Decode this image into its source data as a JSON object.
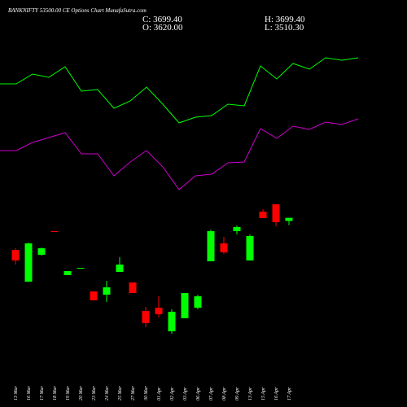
{
  "header": {
    "title": "BANKNIFTY 53500.00 CE Options Chart MunafaSutra.com",
    "close": "C: 3699.40",
    "open": "O: 3620.00",
    "high": "H: 3699.40",
    "low": "L: 3510.30"
  },
  "chart_data": [
    {
      "type": "candlestick",
      "categories": [
        "13 Mar",
        "16 Mar",
        "17 Mar",
        "18 Mar",
        "19 Mar",
        "20 Mar",
        "23 Mar",
        "24 Mar",
        "25 Mar",
        "27 Mar",
        "30 Mar",
        "01 Apr",
        "02 Apr",
        "03 Apr",
        "06 Apr",
        "07 Apr",
        "08 Apr",
        "09 Apr",
        "13 Apr",
        "15 Apr",
        "16 Apr",
        "17 Apr"
      ],
      "open": [
        2873,
        2054,
        2747,
        3356,
        2222,
        2390,
        1802,
        1718,
        2306,
        2033,
        1298,
        1382,
        773,
        1109,
        1382,
        2579,
        3041,
        3356,
        2600,
        3860,
        4049,
        3620
      ],
      "close": [
        2600,
        3041,
        2915,
        3335,
        2327,
        2411,
        1571,
        1907,
        2495,
        1760,
        983,
        1214,
        1277,
        1760,
        1676,
        3356,
        2810,
        3461,
        3230,
        3692,
        3587,
        3699.4
      ],
      "high": [
        2915,
        3062,
        2936,
        3356,
        2327,
        2411,
        1802,
        2075,
        2684,
        2033,
        1403,
        1676,
        1340,
        1760,
        1718,
        3398,
        3209,
        3503,
        3272,
        3923,
        4049,
        3699.4
      ],
      "low": [
        2495,
        2054,
        2726,
        3335,
        2222,
        2390,
        1571,
        1529,
        2306,
        1760,
        878,
        1130,
        710,
        1109,
        1340,
        2579,
        2768,
        3272,
        2600,
        3692,
        3482,
        3510.3
      ],
      "up_color": "#00ff00",
      "down_color": "#ff0000",
      "ylim": [
        500,
        8480
      ]
    },
    {
      "type": "line",
      "categories": [
        null,
        null,
        null,
        null,
        null,
        null,
        null,
        null,
        null,
        null,
        null,
        null,
        null,
        null,
        null,
        null,
        null,
        null,
        null,
        null,
        null,
        null,
        null
      ],
      "series": [
        {
          "color": "#00ff00",
          "values": [
            7157,
            7157,
            7409,
            7325,
            7598,
            6968,
            7010,
            6527,
            6716,
            7073,
            6632,
            6149,
            6296,
            6338,
            6632,
            6590,
            7619,
            7283,
            7682,
            7535,
            7829,
            7766,
            7829
          ]
        },
        {
          "color": "#cc00cc",
          "values": [
            5435,
            5435,
            5645,
            5771,
            5897,
            5351,
            5351,
            4784,
            5141,
            5435,
            5015,
            4427,
            4784,
            4826,
            5120,
            5141,
            6002,
            5750,
            6065,
            5981,
            6170,
            6107,
            6254
          ]
        }
      ],
      "ylim": [
        500,
        8480
      ]
    }
  ]
}
